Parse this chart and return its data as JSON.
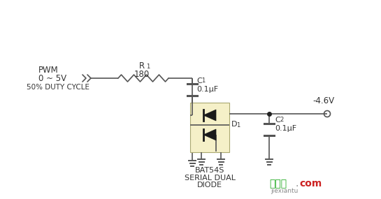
{
  "bg_color": "#ffffff",
  "line_color": "#555555",
  "text_color": "#333333",
  "pwm_labels": [
    "PWM",
    "0 ~ 5V",
    "50% DUTY CYCLE"
  ],
  "r1_label_top": "R",
  "r1_label_sub": "1",
  "r1_label_val": "180",
  "c1_label_top": "C",
  "c1_label_sub": "1",
  "c1_label_val": "0.1μF",
  "c2_label_top": "C",
  "c2_label_sub": "2",
  "c2_label_val": "0.1μF",
  "d1_label_main": "D",
  "d1_label_sub": "1",
  "bat54s_labels": [
    "BAT54S",
    "SERIAL DUAL",
    "DIODE"
  ],
  "vout_label": "-4.6V",
  "diode_box_color": "#f5f0c8",
  "diode_box_edge": "#aaa870",
  "watermark_cn": "接线图",
  "watermark_dot": ".",
  "watermark_com": "com",
  "watermark_sub": "jiexiantu",
  "wm_green": "#22aa22",
  "wm_red": "#cc2222",
  "wm_gray": "#888888"
}
